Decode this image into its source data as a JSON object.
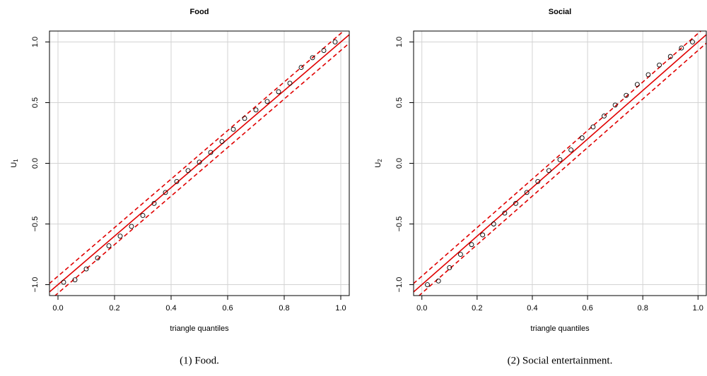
{
  "chart_data": [
    {
      "type": "scatter",
      "title": "Food",
      "xlabel": "triangle quantiles",
      "ylabel": "U",
      "ylabel_sub": "1",
      "caption": "(1) Food.",
      "xlim": [
        -0.03,
        1.03
      ],
      "ylim": [
        -1.09,
        1.09
      ],
      "xticks": [
        {
          "value": 0,
          "label": "0.0"
        },
        0.2,
        0.4,
        0.6,
        0.8,
        {
          "value": 1,
          "label": "1.0"
        }
      ],
      "yticks": [
        {
          "value": -1,
          "label": "−1.0"
        },
        {
          "value": -0.5,
          "label": "−0.5"
        },
        {
          "value": 0,
          "label": "0.0"
        },
        0.5,
        {
          "value": 1,
          "label": "1.0"
        }
      ],
      "grid": true,
      "point_color": "#000000",
      "x": [
        0.02,
        0.06,
        0.1,
        0.14,
        0.18,
        0.22,
        0.26,
        0.3,
        0.34,
        0.38,
        0.42,
        0.46,
        0.5,
        0.54,
        0.58,
        0.62,
        0.66,
        0.7,
        0.74,
        0.78,
        0.82,
        0.86,
        0.9,
        0.94,
        0.98
      ],
      "values": [
        -0.98,
        -0.96,
        -0.87,
        -0.78,
        -0.68,
        -0.6,
        -0.52,
        -0.43,
        -0.33,
        -0.24,
        -0.15,
        -0.06,
        0.01,
        0.09,
        0.18,
        0.28,
        0.37,
        0.44,
        0.51,
        0.59,
        0.66,
        0.79,
        0.87,
        0.93,
        1.0
      ],
      "reference_lines": [
        {
          "color": "#e00000",
          "dashed": false,
          "x": [
            -0.05,
            1.05
          ],
          "values": [
            -1.1,
            1.1
          ]
        },
        {
          "color": "#e00000",
          "dashed": true,
          "x": [
            -0.05,
            1.05
          ],
          "values": [
            -1.17,
            1.03
          ]
        },
        {
          "color": "#e00000",
          "dashed": true,
          "x": [
            -0.05,
            1.05
          ],
          "values": [
            -1.03,
            1.17
          ]
        }
      ]
    },
    {
      "type": "scatter",
      "title": "Social",
      "xlabel": "triangle quantiles",
      "ylabel": "U",
      "ylabel_sub": "2",
      "caption": "(2) Social entertainment.",
      "xlim": [
        -0.03,
        1.03
      ],
      "ylim": [
        -1.09,
        1.09
      ],
      "xticks": [
        {
          "value": 0,
          "label": "0.0"
        },
        0.2,
        0.4,
        0.6,
        0.8,
        {
          "value": 1,
          "label": "1.0"
        }
      ],
      "yticks": [
        {
          "value": -1,
          "label": "−1.0"
        },
        {
          "value": -0.5,
          "label": "−0.5"
        },
        {
          "value": 0,
          "label": "0.0"
        },
        0.5,
        {
          "value": 1,
          "label": "1.0"
        }
      ],
      "grid": true,
      "point_color": "#000000",
      "x": [
        0.02,
        0.06,
        0.1,
        0.14,
        0.18,
        0.22,
        0.26,
        0.3,
        0.34,
        0.38,
        0.42,
        0.46,
        0.5,
        0.54,
        0.58,
        0.62,
        0.66,
        0.7,
        0.74,
        0.78,
        0.82,
        0.86,
        0.9,
        0.94,
        0.98
      ],
      "values": [
        -1.0,
        -0.97,
        -0.86,
        -0.75,
        -0.67,
        -0.59,
        -0.5,
        -0.41,
        -0.33,
        -0.24,
        -0.15,
        -0.06,
        0.03,
        0.11,
        0.21,
        0.3,
        0.39,
        0.48,
        0.56,
        0.65,
        0.73,
        0.81,
        0.88,
        0.95,
        1.0
      ],
      "reference_lines": [
        {
          "color": "#e00000",
          "dashed": false,
          "x": [
            -0.05,
            1.05
          ],
          "values": [
            -1.1,
            1.1
          ]
        },
        {
          "color": "#e00000",
          "dashed": true,
          "x": [
            -0.05,
            1.05
          ],
          "values": [
            -1.17,
            1.03
          ]
        },
        {
          "color": "#e00000",
          "dashed": true,
          "x": [
            -0.05,
            1.05
          ],
          "values": [
            -1.03,
            1.17
          ]
        }
      ]
    }
  ]
}
